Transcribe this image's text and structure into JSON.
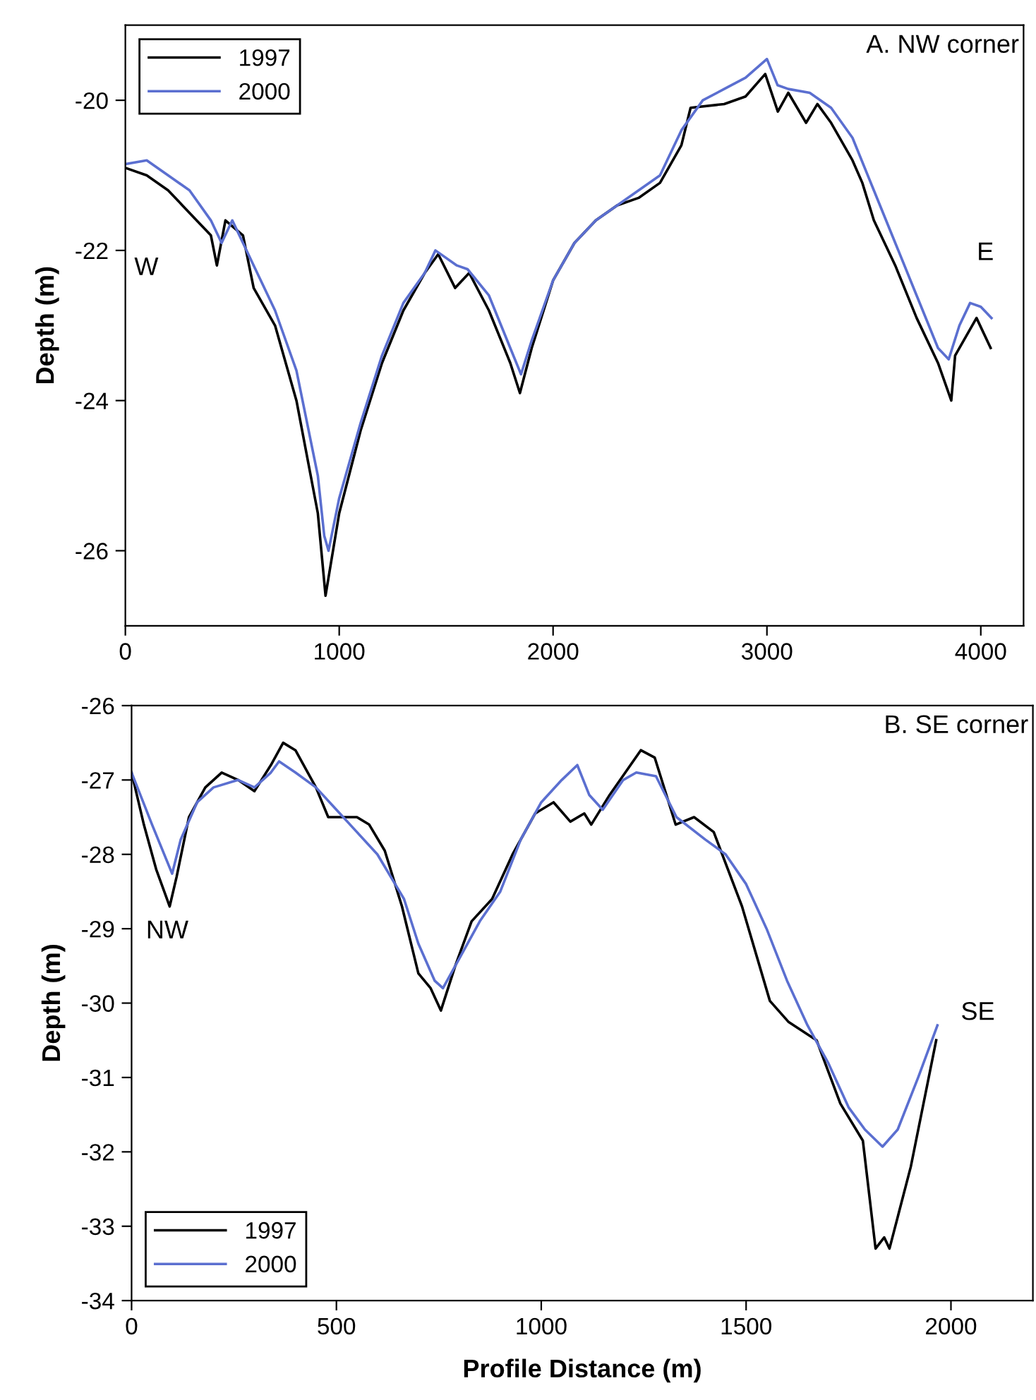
{
  "chart_data": [
    {
      "type": "line",
      "title": "A. NW corner",
      "ylabel": "Depth (m)",
      "xlim": [
        0,
        4200
      ],
      "xticks": [
        0,
        1000,
        2000,
        3000,
        4000
      ],
      "ylim": [
        -27,
        -19
      ],
      "yticks": [
        -26,
        -24,
        -22,
        -20
      ],
      "legend": "top left",
      "grid": false,
      "marker": "none",
      "line_style": "solid",
      "annotations": [
        "W",
        "E"
      ],
      "series": [
        {
          "name": "1997",
          "color": "#000000",
          "x": [
            0,
            100,
            200,
            300,
            400,
            428,
            468,
            550,
            600,
            700,
            800,
            900,
            936,
            1000,
            1100,
            1200,
            1300,
            1400,
            1463,
            1542,
            1608,
            1700,
            1800,
            1845,
            1900,
            2000,
            2100,
            2200,
            2300,
            2400,
            2500,
            2600,
            2643,
            2800,
            2900,
            2992,
            3051,
            3100,
            3183,
            3236,
            3300,
            3400,
            3446,
            3500,
            3600,
            3700,
            3800,
            3862,
            3880,
            3980,
            4046
          ],
          "values": [
            -20.9,
            -21.0,
            -21.2,
            -21.5,
            -21.8,
            -22.2,
            -21.6,
            -21.8,
            -22.5,
            -23.0,
            -24.0,
            -25.5,
            -26.6,
            -25.5,
            -24.4,
            -23.5,
            -22.8,
            -22.3,
            -22.05,
            -22.5,
            -22.3,
            -22.8,
            -23.5,
            -23.9,
            -23.3,
            -22.4,
            -21.9,
            -21.6,
            -21.4,
            -21.3,
            -21.1,
            -20.6,
            -20.1,
            -20.05,
            -19.95,
            -19.65,
            -20.15,
            -19.9,
            -20.3,
            -20.05,
            -20.3,
            -20.8,
            -21.1,
            -21.6,
            -22.2,
            -22.9,
            -23.5,
            -24.0,
            -23.4,
            -22.9,
            -23.3
          ]
        },
        {
          "name": "2000",
          "color": "#5b6fd0",
          "x": [
            0,
            100,
            200,
            300,
            400,
            450,
            500,
            600,
            700,
            800,
            900,
            930,
            950,
            1000,
            1100,
            1200,
            1300,
            1400,
            1450,
            1550,
            1600,
            1700,
            1800,
            1850,
            1900,
            2000,
            2100,
            2200,
            2300,
            2400,
            2500,
            2600,
            2700,
            2800,
            2900,
            3000,
            3050,
            3100,
            3200,
            3300,
            3400,
            3500,
            3600,
            3700,
            3800,
            3850,
            3900,
            3950,
            4000,
            4050
          ],
          "values": [
            -20.85,
            -20.8,
            -21.0,
            -21.2,
            -21.6,
            -21.9,
            -21.6,
            -22.2,
            -22.8,
            -23.6,
            -25.0,
            -25.8,
            -26.0,
            -25.3,
            -24.3,
            -23.4,
            -22.7,
            -22.3,
            -22.0,
            -22.2,
            -22.25,
            -22.6,
            -23.3,
            -23.65,
            -23.2,
            -22.4,
            -21.9,
            -21.6,
            -21.4,
            -21.2,
            -21.0,
            -20.4,
            -20.0,
            -19.85,
            -19.7,
            -19.45,
            -19.8,
            -19.85,
            -19.9,
            -20.1,
            -20.5,
            -21.2,
            -21.9,
            -22.6,
            -23.3,
            -23.45,
            -23.0,
            -22.7,
            -22.75,
            -22.9
          ]
        }
      ]
    },
    {
      "type": "line",
      "title": "B. SE corner",
      "ylabel": "Depth (m)",
      "xlabel": "Profile Distance (m)",
      "xlim": [
        0,
        2200
      ],
      "xticks": [
        0,
        500,
        1000,
        1500,
        2000
      ],
      "ylim": [
        -34,
        -26
      ],
      "yticks": [
        -34,
        -33,
        -32,
        -31,
        -30,
        -29,
        -28,
        -27,
        -26
      ],
      "legend": "bottom left",
      "grid": false,
      "marker": "none",
      "line_style": "solid",
      "annotations": [
        "NW",
        "SE"
      ],
      "series": [
        {
          "name": "1997",
          "color": "#000000",
          "x": [
            0,
            30,
            60,
            93,
            110,
            140,
            180,
            220,
            260,
            300,
            340,
            370,
            400,
            450,
            480,
            550,
            580,
            618,
            660,
            700,
            730,
            755,
            790,
            830,
            880,
            930,
            985,
            1030,
            1071,
            1105,
            1122,
            1167,
            1243,
            1277,
            1328,
            1373,
            1421,
            1490,
            1558,
            1603,
            1672,
            1730,
            1785,
            1816,
            1837,
            1850,
            1902,
            1964
          ],
          "values": [
            -26.9,
            -27.6,
            -28.2,
            -28.7,
            -28.3,
            -27.5,
            -27.1,
            -26.9,
            -27.0,
            -27.15,
            -26.8,
            -26.5,
            -26.6,
            -27.1,
            -27.5,
            -27.5,
            -27.6,
            -27.95,
            -28.7,
            -29.6,
            -29.8,
            -30.1,
            -29.5,
            -28.9,
            -28.6,
            -28.0,
            -27.45,
            -27.3,
            -27.56,
            -27.45,
            -27.6,
            -27.2,
            -26.6,
            -26.7,
            -27.6,
            -27.5,
            -27.7,
            -28.7,
            -29.97,
            -30.25,
            -30.5,
            -31.35,
            -31.85,
            -33.3,
            -33.15,
            -33.3,
            -32.2,
            -30.5
          ]
        },
        {
          "name": "2000",
          "color": "#5b6fd0",
          "x": [
            0,
            50,
            99,
            120,
            160,
            200,
            260,
            300,
            340,
            360,
            400,
            450,
            500,
            550,
            600,
            665,
            700,
            740,
            760,
            800,
            850,
            900,
            950,
            1000,
            1050,
            1088,
            1117,
            1150,
            1200,
            1232,
            1280,
            1330,
            1400,
            1450,
            1500,
            1550,
            1600,
            1650,
            1700,
            1750,
            1790,
            1833,
            1870,
            1920,
            1967
          ],
          "values": [
            -26.9,
            -27.6,
            -28.26,
            -27.8,
            -27.3,
            -27.1,
            -27.0,
            -27.1,
            -26.9,
            -26.75,
            -26.9,
            -27.1,
            -27.4,
            -27.7,
            -28.0,
            -28.6,
            -29.2,
            -29.7,
            -29.8,
            -29.4,
            -28.9,
            -28.5,
            -27.8,
            -27.3,
            -27.0,
            -26.8,
            -27.2,
            -27.4,
            -27.0,
            -26.9,
            -26.95,
            -27.5,
            -27.8,
            -28.0,
            -28.4,
            -29.0,
            -29.7,
            -30.3,
            -30.8,
            -31.4,
            -31.7,
            -31.93,
            -31.7,
            -31.0,
            -30.3
          ]
        }
      ]
    }
  ]
}
